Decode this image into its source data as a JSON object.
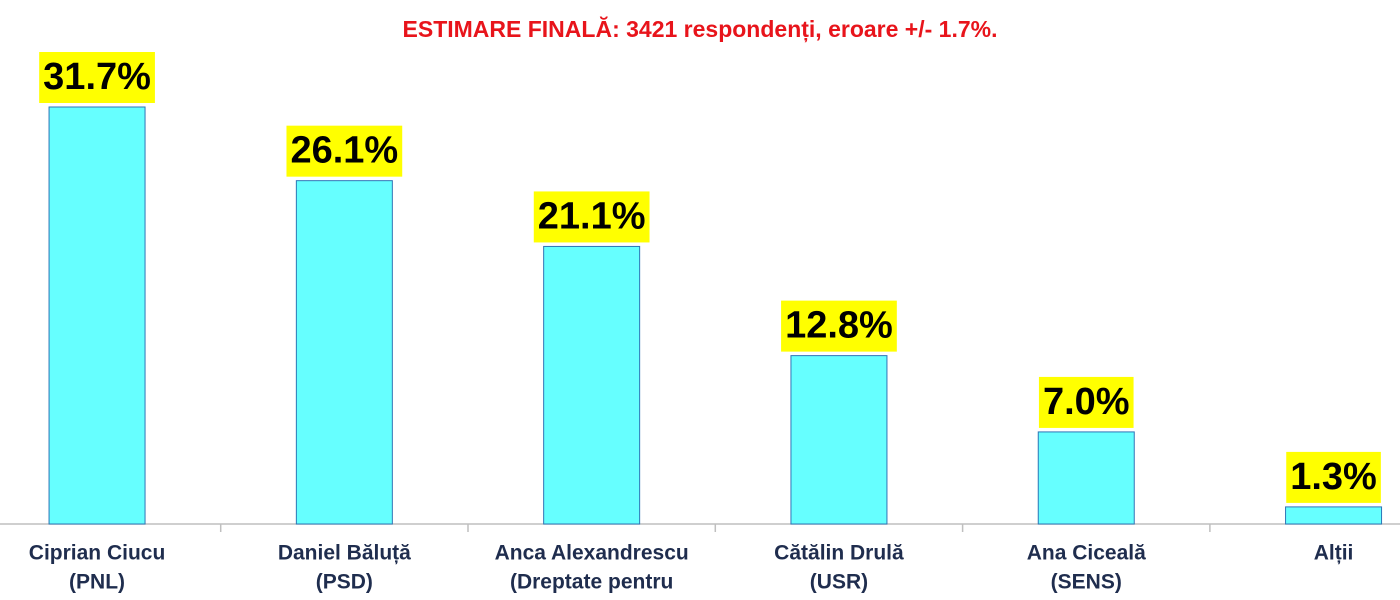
{
  "chart_data": {
    "type": "bar",
    "title": "ESTIMARE FINALĂ: 3421 respondenți, eroare +/- 1.7%.",
    "categories": [
      [
        "Ciprian Ciucu",
        "(PNL)"
      ],
      [
        "Daniel Băluță",
        "(PSD)"
      ],
      [
        "Anca Alexandrescu",
        "(Dreptate pentru"
      ],
      [
        "Cătălin Drulă",
        "(USR)"
      ],
      [
        "Ana Ciceală",
        "(SENS)"
      ],
      [
        "Alții"
      ]
    ],
    "values": [
      31.7,
      26.1,
      21.1,
      12.8,
      7.0,
      1.3
    ],
    "value_labels": [
      "31.7%",
      "26.1%",
      "21.1%",
      "12.8%",
      "7.0%",
      "1.3%"
    ],
    "color": "#66ffff"
  }
}
